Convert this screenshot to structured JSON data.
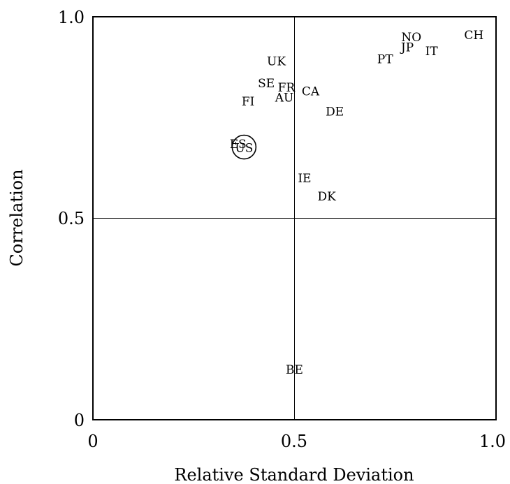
{
  "chart_data": {
    "type": "scatter",
    "title": "",
    "xlabel": "Relative Standard Deviation",
    "ylabel": "Correlation",
    "xlim": [
      0,
      1.0
    ],
    "ylim": [
      0,
      1.0
    ],
    "x_ticks": [
      "0",
      "0.5",
      "1.0"
    ],
    "y_ticks": [
      "0",
      "0.5",
      "1.0"
    ],
    "reference_lines": {
      "x": 0.5,
      "y": 0.5
    },
    "grid": false,
    "legend": "none",
    "highlighted_point": "US",
    "points": [
      {
        "label": "CH",
        "x": 0.945,
        "y": 0.955
      },
      {
        "label": "NO",
        "x": 0.79,
        "y": 0.95
      },
      {
        "label": "JP",
        "x": 0.78,
        "y": 0.925
      },
      {
        "label": "IT",
        "x": 0.84,
        "y": 0.915
      },
      {
        "label": "PT",
        "x": 0.725,
        "y": 0.895
      },
      {
        "label": "UK",
        "x": 0.455,
        "y": 0.89
      },
      {
        "label": "SE",
        "x": 0.43,
        "y": 0.835
      },
      {
        "label": "FR",
        "x": 0.48,
        "y": 0.825
      },
      {
        "label": "CA",
        "x": 0.54,
        "y": 0.815
      },
      {
        "label": "AU",
        "x": 0.475,
        "y": 0.8
      },
      {
        "label": "FI",
        "x": 0.385,
        "y": 0.79
      },
      {
        "label": "DE",
        "x": 0.6,
        "y": 0.765
      },
      {
        "label": "ES",
        "x": 0.36,
        "y": 0.685
      },
      {
        "label": "US",
        "x": 0.375,
        "y": 0.675
      },
      {
        "label": "IE",
        "x": 0.525,
        "y": 0.6
      },
      {
        "label": "DK",
        "x": 0.58,
        "y": 0.555
      },
      {
        "label": "BE",
        "x": 0.5,
        "y": 0.125
      }
    ]
  }
}
